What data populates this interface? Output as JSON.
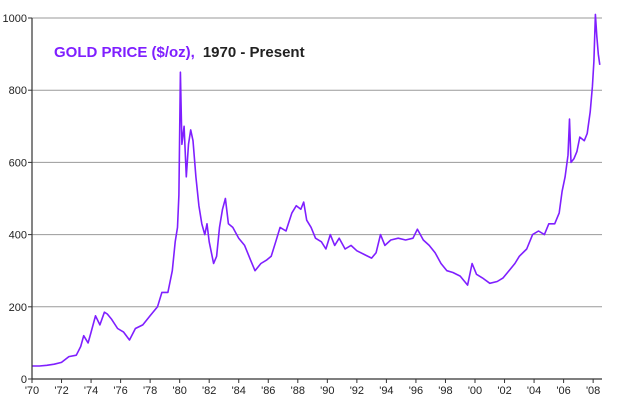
{
  "chart_data": {
    "type": "line",
    "title": {
      "series_label": "GOLD PRICE ($/oz),",
      "range_label": "1970 - Present"
    },
    "xlabel": "",
    "ylabel": "",
    "xlim": [
      1970,
      2008.6
    ],
    "ylim": [
      0,
      1000
    ],
    "grid": "horizontal",
    "x_ticks": [
      {
        "value": 1970,
        "label": "'70"
      },
      {
        "value": 1972,
        "label": "'72"
      },
      {
        "value": 1974,
        "label": "'74"
      },
      {
        "value": 1976,
        "label": "'76"
      },
      {
        "value": 1978,
        "label": "'78"
      },
      {
        "value": 1980,
        "label": "'80"
      },
      {
        "value": 1982,
        "label": "'82"
      },
      {
        "value": 1984,
        "label": "'84"
      },
      {
        "value": 1986,
        "label": "'86"
      },
      {
        "value": 1988,
        "label": "'88"
      },
      {
        "value": 1990,
        "label": "'90"
      },
      {
        "value": 1992,
        "label": "'92"
      },
      {
        "value": 1994,
        "label": "'94"
      },
      {
        "value": 1996,
        "label": "'96"
      },
      {
        "value": 1998,
        "label": "'98"
      },
      {
        "value": 2000,
        "label": "'00"
      },
      {
        "value": 2002,
        "label": "'02"
      },
      {
        "value": 2004,
        "label": "'04"
      },
      {
        "value": 2006,
        "label": "'06"
      },
      {
        "value": 2008,
        "label": "'08"
      }
    ],
    "y_ticks": [
      {
        "value": 0,
        "label": "0"
      },
      {
        "value": 200,
        "label": "200"
      },
      {
        "value": 400,
        "label": "400"
      },
      {
        "value": 600,
        "label": "600"
      },
      {
        "value": 800,
        "label": "800"
      },
      {
        "value": 1000,
        "label": "1000"
      }
    ],
    "series": [
      {
        "name": "Gold price",
        "color": "#7f1fff",
        "points": [
          [
            1970.0,
            36
          ],
          [
            1970.5,
            36
          ],
          [
            1971.0,
            38
          ],
          [
            1971.5,
            41
          ],
          [
            1972.0,
            46
          ],
          [
            1972.5,
            62
          ],
          [
            1973.0,
            66
          ],
          [
            1973.3,
            90
          ],
          [
            1973.5,
            120
          ],
          [
            1973.8,
            100
          ],
          [
            1974.0,
            130
          ],
          [
            1974.3,
            175
          ],
          [
            1974.6,
            150
          ],
          [
            1974.9,
            185
          ],
          [
            1975.1,
            180
          ],
          [
            1975.4,
            165
          ],
          [
            1975.8,
            140
          ],
          [
            1976.2,
            130
          ],
          [
            1976.6,
            108
          ],
          [
            1977.0,
            140
          ],
          [
            1977.5,
            150
          ],
          [
            1978.0,
            175
          ],
          [
            1978.5,
            200
          ],
          [
            1978.8,
            240
          ],
          [
            1979.2,
            240
          ],
          [
            1979.5,
            300
          ],
          [
            1979.7,
            380
          ],
          [
            1979.85,
            420
          ],
          [
            1979.95,
            510
          ],
          [
            1980.05,
            850
          ],
          [
            1980.15,
            650
          ],
          [
            1980.3,
            700
          ],
          [
            1980.45,
            560
          ],
          [
            1980.6,
            650
          ],
          [
            1980.75,
            690
          ],
          [
            1980.9,
            660
          ],
          [
            1981.1,
            560
          ],
          [
            1981.3,
            480
          ],
          [
            1981.5,
            430
          ],
          [
            1981.7,
            400
          ],
          [
            1981.85,
            430
          ],
          [
            1982.0,
            380
          ],
          [
            1982.3,
            320
          ],
          [
            1982.5,
            340
          ],
          [
            1982.7,
            420
          ],
          [
            1982.9,
            470
          ],
          [
            1983.1,
            500
          ],
          [
            1983.3,
            430
          ],
          [
            1983.6,
            420
          ],
          [
            1984.0,
            390
          ],
          [
            1984.4,
            370
          ],
          [
            1984.8,
            330
          ],
          [
            1985.1,
            300
          ],
          [
            1985.5,
            320
          ],
          [
            1985.9,
            330
          ],
          [
            1986.2,
            340
          ],
          [
            1986.5,
            380
          ],
          [
            1986.8,
            420
          ],
          [
            1987.2,
            410
          ],
          [
            1987.6,
            460
          ],
          [
            1987.9,
            480
          ],
          [
            1988.2,
            470
          ],
          [
            1988.4,
            490
          ],
          [
            1988.6,
            440
          ],
          [
            1988.9,
            420
          ],
          [
            1989.2,
            390
          ],
          [
            1989.6,
            380
          ],
          [
            1989.9,
            360
          ],
          [
            1990.2,
            400
          ],
          [
            1990.5,
            370
          ],
          [
            1990.8,
            390
          ],
          [
            1991.2,
            360
          ],
          [
            1991.6,
            370
          ],
          [
            1992.0,
            355
          ],
          [
            1992.5,
            345
          ],
          [
            1993.0,
            335
          ],
          [
            1993.3,
            350
          ],
          [
            1993.6,
            400
          ],
          [
            1993.9,
            370
          ],
          [
            1994.3,
            385
          ],
          [
            1994.8,
            390
          ],
          [
            1995.3,
            385
          ],
          [
            1995.8,
            390
          ],
          [
            1996.1,
            415
          ],
          [
            1996.5,
            385
          ],
          [
            1996.9,
            370
          ],
          [
            1997.3,
            350
          ],
          [
            1997.7,
            320
          ],
          [
            1998.1,
            300
          ],
          [
            1998.5,
            295
          ],
          [
            1999.0,
            285
          ],
          [
            1999.5,
            260
          ],
          [
            1999.8,
            320
          ],
          [
            2000.1,
            290
          ],
          [
            2000.5,
            280
          ],
          [
            2001.0,
            265
          ],
          [
            2001.5,
            270
          ],
          [
            2001.9,
            280
          ],
          [
            2002.3,
            300
          ],
          [
            2002.7,
            320
          ],
          [
            2003.0,
            340
          ],
          [
            2003.5,
            360
          ],
          [
            2003.9,
            400
          ],
          [
            2004.3,
            410
          ],
          [
            2004.7,
            400
          ],
          [
            2005.0,
            430
          ],
          [
            2005.4,
            430
          ],
          [
            2005.7,
            460
          ],
          [
            2005.9,
            520
          ],
          [
            2006.1,
            560
          ],
          [
            2006.3,
            620
          ],
          [
            2006.4,
            720
          ],
          [
            2006.5,
            600
          ],
          [
            2006.7,
            610
          ],
          [
            2006.9,
            630
          ],
          [
            2007.1,
            670
          ],
          [
            2007.4,
            660
          ],
          [
            2007.6,
            680
          ],
          [
            2007.8,
            740
          ],
          [
            2007.95,
            810
          ],
          [
            2008.05,
            880
          ],
          [
            2008.15,
            1010
          ],
          [
            2008.25,
            950
          ],
          [
            2008.35,
            900
          ],
          [
            2008.45,
            870
          ]
        ]
      }
    ]
  }
}
